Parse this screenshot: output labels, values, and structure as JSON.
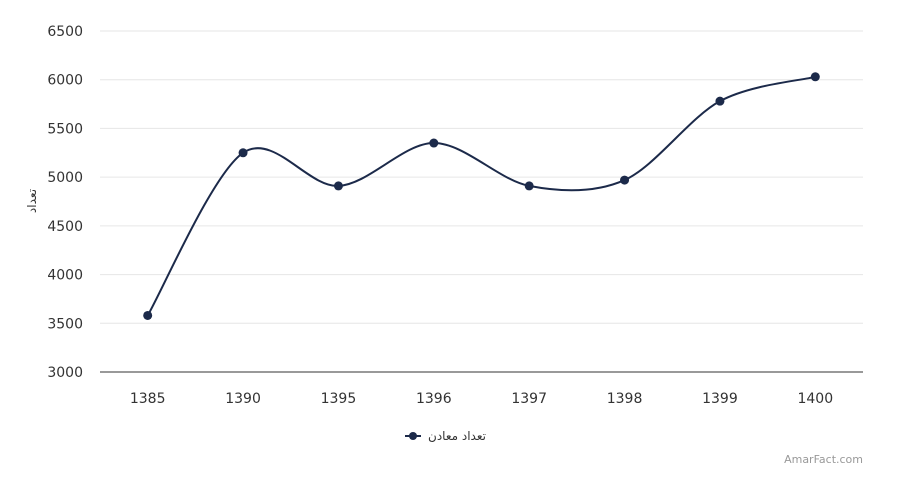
{
  "chart_data": {
    "type": "line",
    "curve": "smooth",
    "categories": [
      "1385",
      "1390",
      "1395",
      "1396",
      "1397",
      "1398",
      "1399",
      "1400"
    ],
    "series": [
      {
        "name": "تعداد معادن",
        "values": [
          3580,
          5250,
          4910,
          5350,
          4910,
          4970,
          5780,
          6030
        ]
      }
    ],
    "xlabel": "",
    "ylabel": "تعداد",
    "ylim": [
      3000,
      6500
    ],
    "yticks": [
      "3000",
      "3500",
      "4000",
      "4500",
      "5000",
      "5500",
      "6000",
      "6500"
    ],
    "grid": true,
    "legend_position": "bottom-center",
    "colors": {
      "series": "#1c2a4a",
      "grid": "#e6e6e6",
      "axis": "#333333"
    }
  },
  "credit": "AmarFact.com"
}
